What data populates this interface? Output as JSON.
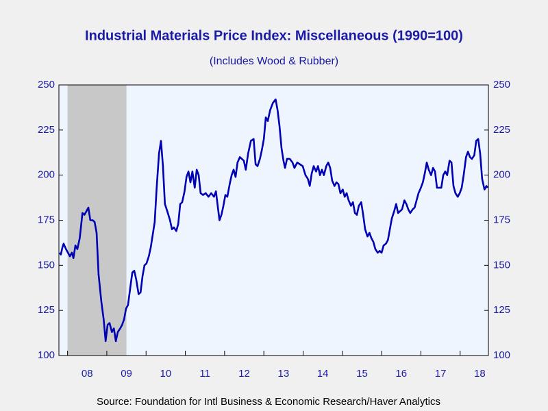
{
  "chart_data": {
    "type": "line",
    "title": "Industrial Materials Price Index: Miscellaneous (1990=100)",
    "subtitle": "(Includes Wood & Rubber)",
    "source": "Source:  Foundation for Intl Business & Economic Research/Haver Analytics",
    "color": "#0000b4",
    "shade_color": "#c8c8c8",
    "shaded_periods": [
      [
        2008.0,
        2009.5
      ]
    ],
    "xlim": [
      2007.78,
      2018.72
    ],
    "xticks": [
      {
        "value": 2008.5,
        "label": "08"
      },
      {
        "value": 2009.5,
        "label": "09"
      },
      {
        "value": 2010.5,
        "label": "10"
      },
      {
        "value": 2011.5,
        "label": "11"
      },
      {
        "value": 2012.5,
        "label": "12"
      },
      {
        "value": 2013.5,
        "label": "13"
      },
      {
        "value": 2014.5,
        "label": "14"
      },
      {
        "value": 2015.5,
        "label": "15"
      },
      {
        "value": 2016.5,
        "label": "16"
      },
      {
        "value": 2017.5,
        "label": "17"
      },
      {
        "value": 2018.5,
        "label": "18"
      }
    ],
    "minor_xticks": [
      2008,
      2009,
      2010,
      2011,
      2012,
      2013,
      2014,
      2015,
      2016,
      2017,
      2018
    ],
    "ylim": [
      100,
      250
    ],
    "yticks": [
      100,
      125,
      150,
      175,
      200,
      225,
      250
    ],
    "y2lim": [
      100,
      250
    ],
    "y2ticks": [
      100,
      125,
      150,
      175,
      200,
      225,
      250
    ],
    "x": [
      2007.8,
      2007.83,
      2007.87,
      2007.9,
      2007.96,
      2008.01,
      2008.06,
      2008.11,
      2008.15,
      2008.2,
      2008.25,
      2008.31,
      2008.38,
      2008.43,
      2008.48,
      2008.53,
      2008.58,
      2008.64,
      2008.69,
      2008.74,
      2008.79,
      2008.86,
      2008.92,
      2008.97,
      2009.02,
      2009.07,
      2009.13,
      2009.18,
      2009.23,
      2009.28,
      2009.34,
      2009.39,
      2009.44,
      2009.49,
      2009.54,
      2009.6,
      2009.65,
      2009.7,
      2009.75,
      2009.81,
      2009.86,
      2009.91,
      2009.96,
      2010.01,
      2010.07,
      2010.12,
      2010.17,
      2010.22,
      2010.27,
      2010.33,
      2010.38,
      2010.43,
      2010.48,
      2010.54,
      2010.61,
      2010.66,
      2010.71,
      2010.77,
      2010.82,
      2010.87,
      2010.92,
      2010.98,
      2011.03,
      2011.08,
      2011.13,
      2011.18,
      2011.24,
      2011.29,
      2011.34,
      2011.39,
      2011.45,
      2011.52,
      2011.59,
      2011.66,
      2011.73,
      2011.78,
      2011.83,
      2011.87,
      2011.92,
      2011.97,
      2012.02,
      2012.07,
      2012.13,
      2012.18,
      2012.23,
      2012.28,
      2012.33,
      2012.39,
      2012.44,
      2012.49,
      2012.54,
      2012.6,
      2012.67,
      2012.74,
      2012.79,
      2012.84,
      2012.9,
      2012.95,
      2013.0,
      2013.05,
      2013.1,
      2013.16,
      2013.23,
      2013.3,
      2013.35,
      2013.4,
      2013.45,
      2013.5,
      2013.54,
      2013.59,
      2013.66,
      2013.73,
      2013.78,
      2013.85,
      2013.92,
      2013.99,
      2014.06,
      2014.12,
      2014.17,
      2014.22,
      2014.27,
      2014.33,
      2014.38,
      2014.43,
      2014.48,
      2014.53,
      2014.59,
      2014.64,
      2014.69,
      2014.74,
      2014.8,
      2014.85,
      2014.9,
      2014.95,
      2015.01,
      2015.06,
      2015.11,
      2015.16,
      2015.22,
      2015.27,
      2015.32,
      2015.37,
      2015.42,
      2015.48,
      2015.53,
      2015.58,
      2015.64,
      2015.69,
      2015.74,
      2015.79,
      2015.84,
      2015.9,
      2015.95,
      2016.0,
      2016.05,
      2016.11,
      2016.16,
      2016.21,
      2016.26,
      2016.32,
      2016.37,
      2016.42,
      2016.47,
      2016.52,
      2016.58,
      2016.63,
      2016.68,
      2016.73,
      2016.79,
      2016.84,
      2016.89,
      2016.94,
      2017.0,
      2017.05,
      2017.1,
      2017.15,
      2017.2,
      2017.26,
      2017.31,
      2017.36,
      2017.41,
      2017.47,
      2017.52,
      2017.57,
      2017.62,
      2017.67,
      2017.73,
      2017.78,
      2017.83,
      2017.88,
      2017.94,
      2017.99,
      2018.04,
      2018.09,
      2018.15,
      2018.2,
      2018.25,
      2018.3,
      2018.36,
      2018.41,
      2018.46,
      2018.51,
      2018.56,
      2018.62,
      2018.67,
      2018.7
    ],
    "values": [
      157,
      156,
      160,
      162,
      159,
      157,
      155,
      157,
      154,
      161,
      159,
      165,
      179,
      178,
      180,
      182,
      175,
      175,
      174,
      168,
      145,
      130,
      120,
      108,
      117,
      118,
      113,
      115,
      108,
      113,
      115,
      117,
      120,
      126,
      128,
      138,
      146,
      147,
      142,
      134,
      135,
      144,
      150,
      151,
      155,
      160,
      167,
      174,
      193,
      212,
      219,
      205,
      184,
      180,
      175,
      170,
      171,
      169,
      173,
      184,
      185,
      191,
      199,
      202,
      196,
      202,
      193,
      203,
      200,
      190,
      189,
      190,
      188,
      190,
      188,
      191,
      182,
      175,
      178,
      183,
      189,
      188,
      195,
      200,
      203,
      199,
      207,
      210,
      209,
      208,
      203,
      212,
      219,
      220,
      206,
      205,
      209,
      214,
      220,
      232,
      230,
      236,
      240,
      242,
      236,
      227,
      215,
      208,
      204,
      209,
      209,
      207,
      204,
      207,
      206,
      205,
      200,
      198,
      194,
      201,
      205,
      202,
      205,
      200,
      203,
      200,
      205,
      207,
      204,
      197,
      194,
      196,
      195,
      190,
      192,
      188,
      190,
      186,
      183,
      185,
      179,
      178,
      183,
      185,
      178,
      170,
      166,
      168,
      165,
      163,
      159,
      157,
      158,
      157,
      161,
      162,
      164,
      170,
      176,
      180,
      184,
      179,
      180,
      181,
      186,
      184,
      181,
      179,
      181,
      182,
      186,
      190,
      193,
      196,
      201,
      207,
      203,
      200,
      204,
      202,
      193,
      193,
      193,
      200,
      202,
      200,
      208,
      207,
      194,
      190,
      188,
      190,
      193,
      200,
      210,
      213,
      210,
      209,
      211,
      219,
      220,
      212,
      198,
      192,
      194,
      193
    ]
  }
}
